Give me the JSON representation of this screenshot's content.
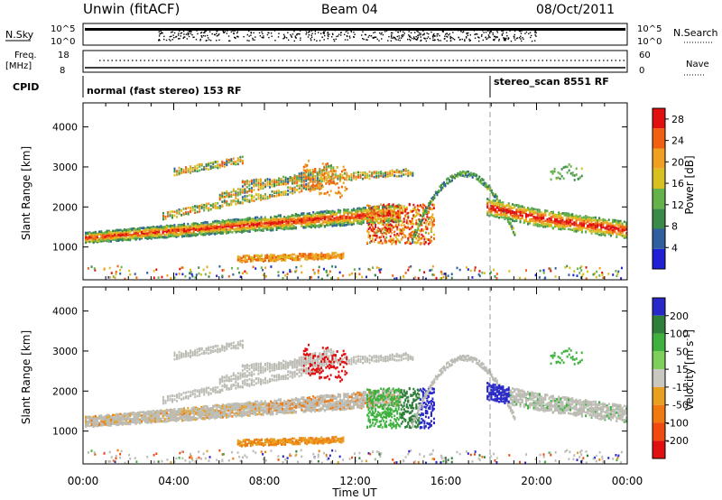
{
  "header": {
    "station": "Unwin (fitACF)",
    "beam": "Beam 04",
    "date": "08/Oct/2011"
  },
  "top_panels": {
    "nsky_label": "N.Sky",
    "nsearch_label": "N.Search",
    "log_top": "10^5",
    "log_bottom": "10^0",
    "freq_label": "Freq.",
    "freq_unit": "[MHz]",
    "freq_top": "18",
    "freq_bottom": "8",
    "nave_top": "60",
    "nave_bottom": "0",
    "nave_label": "Nave",
    "cpid_label": "CPID",
    "cpid_segments": [
      {
        "label": "normal (fast stereo) 153 RF",
        "start_hour": 0
      },
      {
        "label": "stereo_scan 8551 RF",
        "start_hour": 18
      }
    ]
  },
  "colors": {
    "power_scale": [
      "#1f1fd6",
      "#2f5fa0",
      "#3a8a4a",
      "#66b24a",
      "#d8c020",
      "#f0a020",
      "#f06010",
      "#e01010"
    ],
    "velocity_scale": [
      "#2828c8",
      "#2f7f3a",
      "#3fb13f",
      "#7ed05a",
      "#c8c8c0",
      "#e8a020",
      "#f07a10",
      "#f04a10",
      "#e01010"
    ],
    "ground_scatter": "#bcbcb4"
  },
  "chart_data": [
    {
      "type": "heatmap",
      "name": "power",
      "xlabel": "Time UT",
      "ylabel": "Slant Range [km]",
      "xlim": [
        0,
        24
      ],
      "ylim": [
        180,
        4600
      ],
      "x_ticks": [
        "00:00",
        "04:00",
        "08:00",
        "12:00",
        "16:00",
        "20:00",
        "00:00"
      ],
      "y_ticks": [
        1000,
        2000,
        3000,
        4000
      ],
      "colorbar_label": "Power [dB]",
      "colorbar_ticks": [
        4,
        8,
        12,
        16,
        20,
        24,
        28
      ],
      "colorbar_range": [
        0,
        30
      ]
    },
    {
      "type": "heatmap",
      "name": "velocity",
      "xlabel": "Time UT",
      "ylabel": "Slant Range [km]",
      "xlim": [
        0,
        24
      ],
      "ylim": [
        180,
        4600
      ],
      "x_ticks": [
        "00:00",
        "04:00",
        "08:00",
        "12:00",
        "16:00",
        "20:00",
        "00:00"
      ],
      "y_ticks": [
        1000,
        2000,
        3000,
        4000
      ],
      "colorbar_label": "Velocity [m s^-1]",
      "colorbar_ticks": [
        200,
        100,
        50,
        15,
        -15,
        -50,
        -100,
        -200
      ]
    }
  ]
}
